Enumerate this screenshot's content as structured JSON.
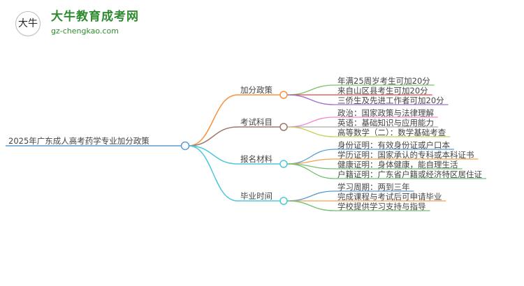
{
  "logo": {
    "title": "大牛教育成考网",
    "url": "gz-chengkao.com",
    "mark": "大牛"
  },
  "root": {
    "label": "2025年广东成人高考药学专业加分政策",
    "color": "#5b9bd5"
  },
  "branches": [
    {
      "label": "加分政策",
      "color": "#f5923e",
      "leaves": [
        {
          "label": "年满25周岁考生可加20分",
          "color": "#7dc36b"
        },
        {
          "label": "来自山区县考生可加20分",
          "color": "#e0454a"
        },
        {
          "label": "三侨生及先进工作者可加20分",
          "color": "#a070d0"
        }
      ]
    },
    {
      "label": "考试科目",
      "color": "#a0766a",
      "leaves": [
        {
          "label": "政治：国家政策与法律理解",
          "color": "#f08ad0"
        },
        {
          "label": "英语：基础知识与应用能力",
          "color": "#aaaaaa"
        },
        {
          "label": "高等数学（二）：数学基础考查",
          "color": "#c8d060"
        }
      ]
    },
    {
      "label": "报名材料",
      "color": "#4fc8d8",
      "leaves": [
        {
          "label": "身份证明：有效身份证或户口本",
          "color": "#5b9bd5"
        },
        {
          "label": "学历证明：国家承认的专科或本科证书",
          "color": "#f5a050"
        },
        {
          "label": "健康证明：身体健康，能自理生活",
          "color": "#70c070"
        },
        {
          "label": "户籍证明：广东省户籍或经济特区居住证",
          "color": "#70c070"
        }
      ]
    },
    {
      "label": "毕业时间",
      "color": "#4fc8d8",
      "leaves": [
        {
          "label": "学习周期：两到三年",
          "color": "#5b9bd5"
        },
        {
          "label": "完成课程与考试后可申请毕业",
          "color": "#f5a050"
        },
        {
          "label": "学校提供学习支持与指导",
          "color": "#70c070"
        }
      ]
    }
  ]
}
